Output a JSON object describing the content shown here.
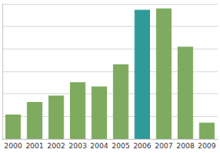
{
  "chart_data": {
    "type": "bar",
    "categories": [
      "2000",
      "2001",
      "2002",
      "2003",
      "2004",
      "2005",
      "2006",
      "2007",
      "2008",
      "2009"
    ],
    "values": [
      1.08,
      1.64,
      1.93,
      2.52,
      2.33,
      3.31,
      5.74,
      5.8,
      4.1,
      0.72
    ],
    "colors": [
      "#7eab5f",
      "#7eab5f",
      "#7eab5f",
      "#7eab5f",
      "#7eab5f",
      "#7eab5f",
      "#2f9a9a",
      "#7eab5f",
      "#7eab5f",
      "#7eab5f"
    ],
    "ylim": [
      0,
      6
    ],
    "yticks": [
      0,
      1,
      2,
      3,
      4,
      5,
      6
    ],
    "grid": true,
    "tick_labels": "x"
  }
}
